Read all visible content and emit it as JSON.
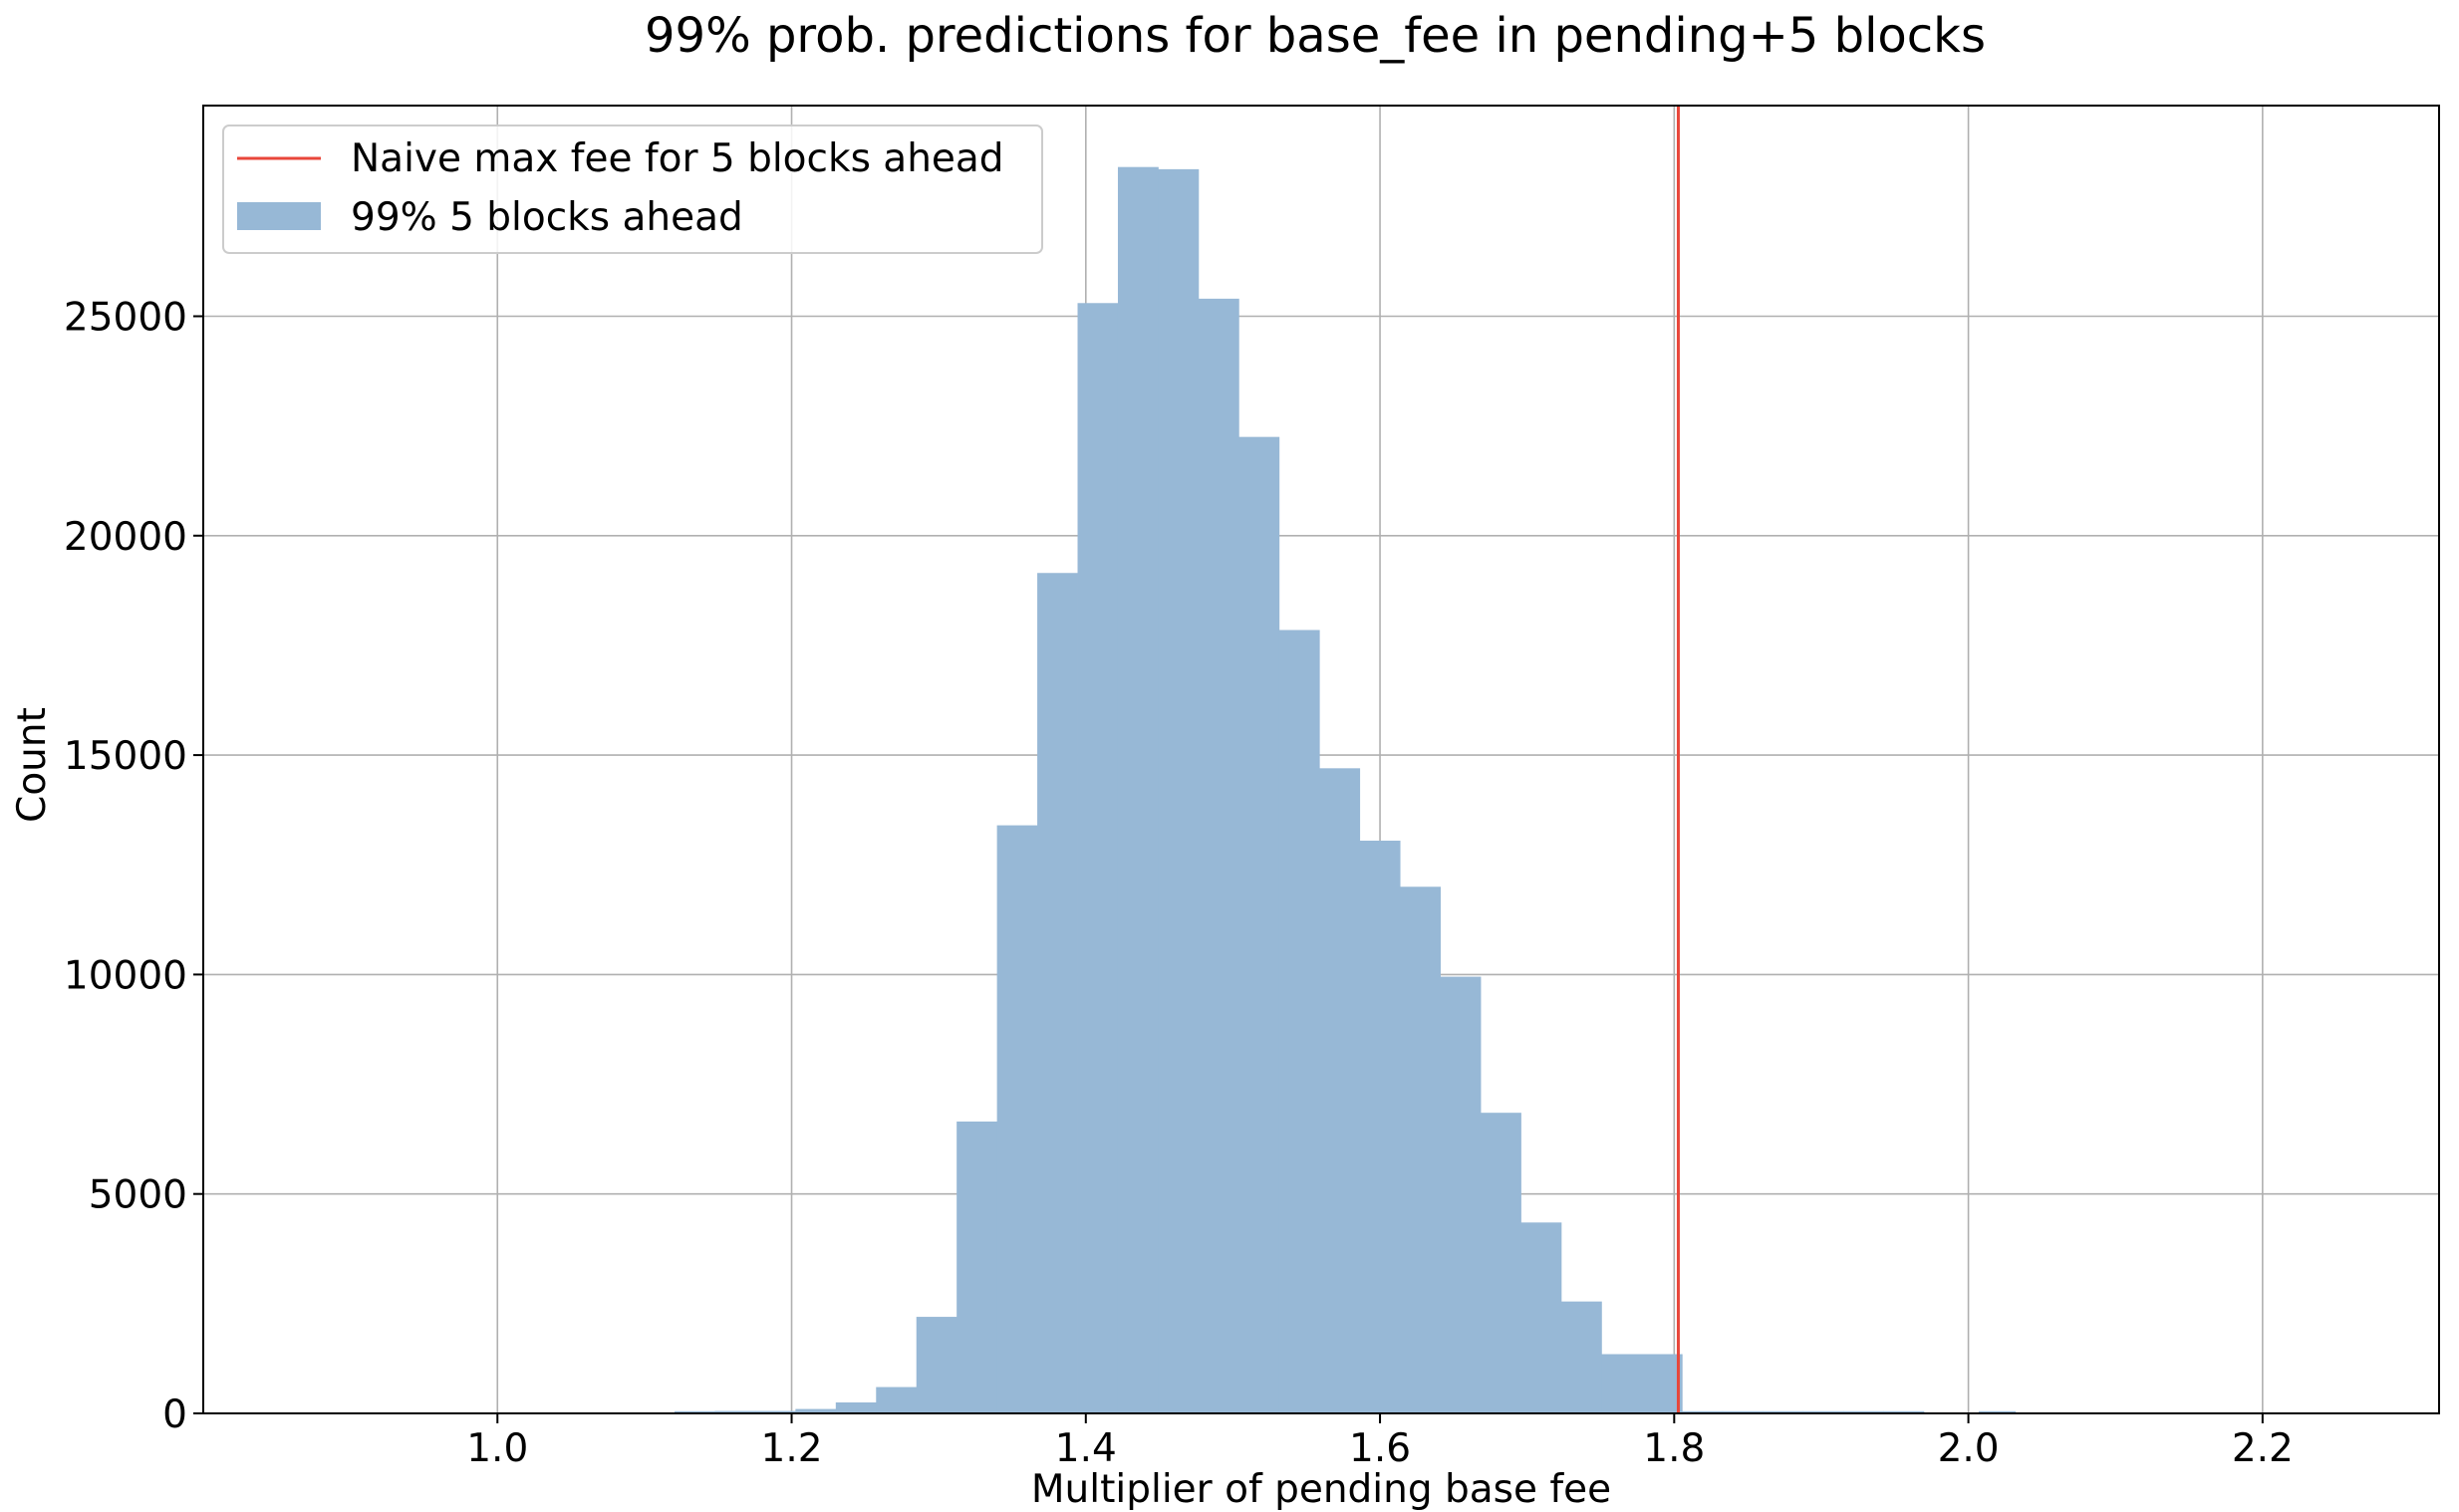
{
  "chart_data": {
    "type": "bar",
    "title": "99% prob. predictions for base_fee in pending+5 blocks",
    "xlabel": "Multiplier of pending base fee",
    "ylabel": "Count",
    "xlim": [
      0.8,
      2.32
    ],
    "ylim": [
      0,
      29800
    ],
    "x_ticks": [
      1.0,
      1.2,
      1.4,
      1.6,
      1.8,
      2.0,
      2.2
    ],
    "x_tick_labels": [
      "1.0",
      "1.2",
      "1.4",
      "1.6",
      "1.8",
      "2.0",
      "2.2"
    ],
    "y_ticks": [
      0,
      5000,
      10000,
      15000,
      20000,
      25000
    ],
    "y_tick_labels": [
      "0",
      "5000",
      "10000",
      "15000",
      "20000",
      "25000"
    ],
    "grid": true,
    "legend_position": "top-left",
    "legend": [
      {
        "label": "Naive max fee for 5 blocks ahead",
        "kind": "line",
        "color": "#e8463a"
      },
      {
        "label": "99% 5 blocks ahead",
        "kind": "patch",
        "color": "#97b8d6"
      }
    ],
    "vline": {
      "x": 1.8028,
      "color": "#e8463a"
    },
    "bar_color": "#97b8d6",
    "bins": [
      {
        "x0": 1.1204,
        "x1": 1.1478,
        "count": 50
      },
      {
        "x0": 1.1478,
        "x1": 1.1752,
        "count": 55
      },
      {
        "x0": 1.1752,
        "x1": 1.2026,
        "count": 55
      },
      {
        "x0": 1.2026,
        "x1": 1.23,
        "count": 100
      },
      {
        "x0": 1.23,
        "x1": 1.2574,
        "count": 250
      },
      {
        "x0": 1.2574,
        "x1": 1.2848,
        "count": 600
      },
      {
        "x0": 1.2848,
        "x1": 1.3122,
        "count": 2200
      },
      {
        "x0": 1.3122,
        "x1": 1.3396,
        "count": 6650
      },
      {
        "x0": 1.3396,
        "x1": 1.367,
        "count": 13400
      },
      {
        "x0": 1.367,
        "x1": 1.3944,
        "count": 19150
      },
      {
        "x0": 1.3944,
        "x1": 1.4218,
        "count": 25300
      },
      {
        "x0": 1.4218,
        "x1": 1.4492,
        "count": 28400
      },
      {
        "x0": 1.4492,
        "x1": 1.4766,
        "count": 28350
      },
      {
        "x0": 1.4766,
        "x1": 1.504,
        "count": 25400
      },
      {
        "x0": 1.504,
        "x1": 1.5314,
        "count": 22250
      },
      {
        "x0": 1.5314,
        "x1": 1.5588,
        "count": 17850
      },
      {
        "x0": 1.5588,
        "x1": 1.5862,
        "count": 14700
      },
      {
        "x0": 1.5862,
        "x1": 1.6136,
        "count": 13050
      },
      {
        "x0": 1.6136,
        "x1": 1.641,
        "count": 12000
      },
      {
        "x0": 1.641,
        "x1": 1.6684,
        "count": 9950
      },
      {
        "x0": 1.6684,
        "x1": 1.6958,
        "count": 6850
      },
      {
        "x0": 1.6958,
        "x1": 1.7232,
        "count": 4350
      },
      {
        "x0": 1.7232,
        "x1": 1.7506,
        "count": 2550
      },
      {
        "x0": 1.7506,
        "x1": 1.778,
        "count": 1350
      },
      {
        "x0": 1.778,
        "x1": 1.8054,
        "count": 1350
      },
      {
        "x0": 1.8054,
        "x1": 1.8328,
        "count": 50
      },
      {
        "x0": 1.8328,
        "x1": 1.8602,
        "count": 50
      },
      {
        "x0": 1.8602,
        "x1": 1.8876,
        "count": 50
      },
      {
        "x0": 1.8876,
        "x1": 1.915,
        "count": 50
      },
      {
        "x0": 1.915,
        "x1": 1.9424,
        "count": 50
      },
      {
        "x0": 1.9424,
        "x1": 1.9698,
        "count": 50
      },
      {
        "x0": 2.007,
        "x1": 2.032,
        "count": 50
      }
    ]
  }
}
